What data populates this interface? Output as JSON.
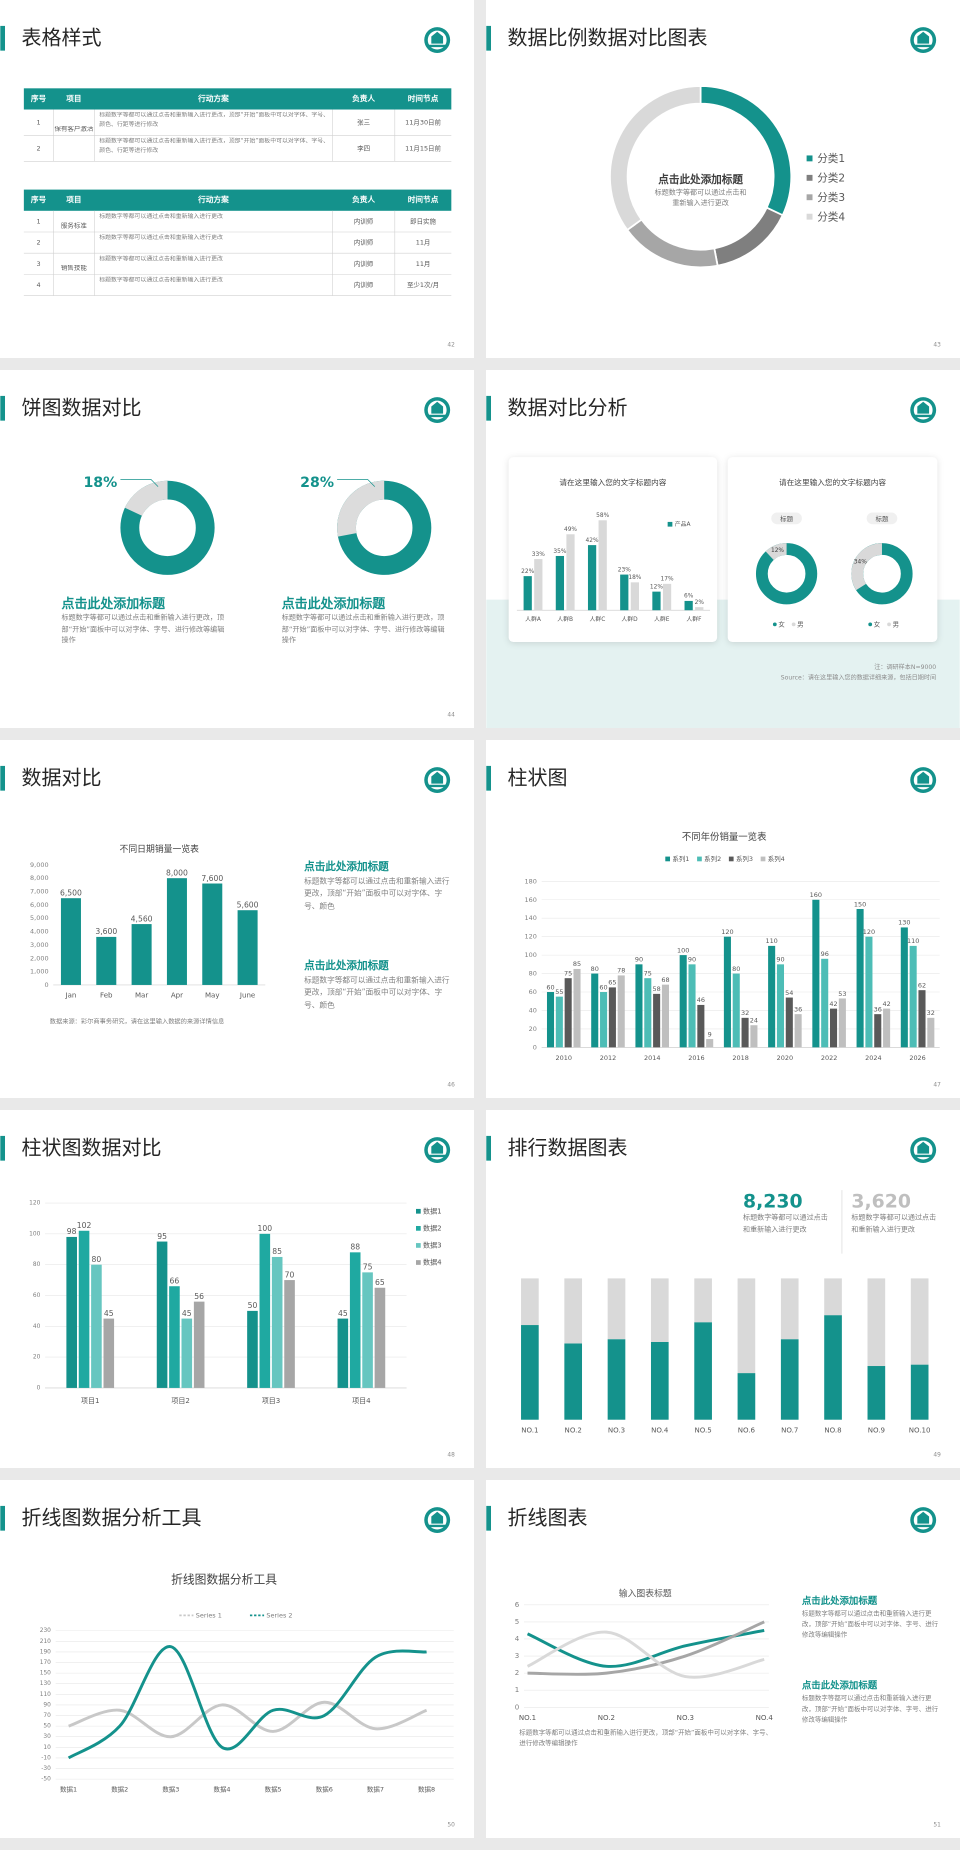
{
  "slides": [
    {
      "title": "表格样式",
      "page": 42,
      "tables": [
        {
          "header": [
            "序号",
            "项目",
            "行动方案",
            "负责人",
            "时间节点"
          ],
          "rows": [
            {
              "no": "1",
              "project": "保有客户激活",
              "plan": "标题数字等都可以通过点击和重新输入进行更改，顶部“开始”面板中可以对字体、字号、颜色、行距等进行修改",
              "owner": "张三",
              "date": "11月30日前"
            },
            {
              "no": "2",
              "plan": "标题数字等都可以通过点击和重新输入进行更改，顶部“开始”面板中可以对字体、字号、颜色、行距等进行修改",
              "owner": "李四",
              "date": "11月15日前"
            }
          ]
        },
        {
          "header": [
            "序号",
            "项目",
            "行动方案",
            "负责人",
            "时间节点"
          ],
          "rows": [
            {
              "no": "1",
              "project": "服务标准",
              "plan": "标题数字等都可以通过点击和重新输入进行更改",
              "owner": "内训师",
              "date": "即日实施"
            },
            {
              "no": "2",
              "plan": "标题数字等都可以通过点击和重新输入进行更改",
              "owner": "内训师",
              "date": "11月"
            },
            {
              "no": "3",
              "project": "销售技能",
              "plan": "标题数字等都可以通过点击和重新输入进行更改",
              "owner": "内训师",
              "date": "11月"
            },
            {
              "no": "4",
              "plan": "标题数字等都可以通过点击和重新输入进行更改",
              "owner": "内训师",
              "date": "至少1次/月"
            }
          ]
        }
      ]
    },
    {
      "title": "数据比例数据对比图表",
      "page": 43,
      "chart": {
        "type": "donut",
        "title": "点击此处添加标题",
        "text": "标题数字等都可以通过点击和重新输入进行更改",
        "categories": [
          "分类1",
          "分类2",
          "分类3",
          "分类4"
        ],
        "values": [
          32,
          15,
          18,
          35
        ],
        "colors": [
          "#14928c",
          "#7f7f7f",
          "#a6a6a6",
          "#d9d9d9"
        ]
      }
    },
    {
      "title": "饼图数据对比",
      "page": 44,
      "charts": [
        {
          "type": "ring",
          "value": 18,
          "value_label": "18%",
          "color": "#dcdcdc",
          "heading": "点击此处添加标题",
          "text": "标题数字等都可以通过点击和重新输入进行更改，顶部“开始”面板中可以对字体、字号、进行修改等编辑操作"
        },
        {
          "type": "ring",
          "value": 28,
          "value_label": "28%",
          "color": "#dcdcdc",
          "heading": "点击此处添加标题",
          "text": "标题数字等都可以通过点击和重新输入进行更改，顶部“开始”面板中可以对字体、字号、进行修改等编辑操作"
        }
      ]
    },
    {
      "title": "数据对比分析",
      "page": 45,
      "cards": [
        {
          "title": "请在这里输入您的文字标题内容",
          "chart": {
            "type": "bar",
            "categories": [
              "人群A",
              "人群B",
              "人群C",
              "人群D",
              "人群E",
              "人群F"
            ],
            "ylim": [
              0,
              60
            ],
            "series": [
              {
                "name": "产品A",
                "color": "#14928c",
                "values": [
                  22,
                  35,
                  42,
                  23,
                  12,
                  6
                ],
                "value_labels": [
                  "22%",
                  "35%",
                  "42%",
                  "23%",
                  "12%",
                  "6%"
                ]
              },
              {
                "color": "#d9d9d9",
                "values": [
                  33,
                  49,
                  58,
                  18,
                  17,
                  2
                ],
                "value_labels": [
                  "33%",
                  "49%",
                  "58%",
                  "18%",
                  "17%",
                  "2%"
                ]
              }
            ]
          }
        },
        {
          "title": "请在这里输入您的文字标题内容",
          "chart": {
            "type": "rings",
            "legend": [
              "女",
              "男"
            ],
            "colors": [
              "#14928c",
              "#d9d9d9"
            ],
            "items": [
              {
                "label": "标题",
                "value": 12,
                "value_label": "12%"
              },
              {
                "label": "标题",
                "value": 34,
                "value_label": "34%"
              }
            ]
          }
        }
      ],
      "notes": [
        "注：调研样本N=9000",
        "Source：请在这里输入您的数据详细来源，包括日期时间"
      ]
    },
    {
      "title": "数据对比",
      "page": 46,
      "chart": {
        "type": "bar",
        "title": "不同日期销量一览表",
        "categories": [
          "Jan",
          "Feb",
          "Mar",
          "Apr",
          "May",
          "June"
        ],
        "values": [
          6500,
          3600,
          4560,
          8000,
          7600,
          5600
        ],
        "value_labels": [
          "6,500",
          "3,600",
          "4,560",
          "8,000",
          "7,600",
          "5,600"
        ],
        "color": "#14928c",
        "ylim": [
          0,
          9000
        ],
        "yticks": [
          0,
          {
            "value": 1000,
            "label": "1,000"
          },
          {
            "value": 2000,
            "label": "2,000"
          },
          {
            "value": 3000,
            "label": "3,000"
          },
          {
            "value": 4000,
            "label": "4,000"
          },
          {
            "value": 5000,
            "label": "5,000"
          },
          {
            "value": 6000,
            "label": "6,000"
          },
          {
            "value": 7000,
            "label": "7,000"
          },
          {
            "value": 8000,
            "label": "8,000"
          },
          {
            "value": 9000,
            "label": "9,000"
          }
        ],
        "source": "数据来源：彩尔商事务研究，请在这里输入数据的来源详情信息"
      },
      "texts": [
        {
          "heading": "点击此处添加标题",
          "text": "标题数字等都可以通过点击和重新输入进行更改，顶部“开始”面板中可以对字体、字号、颜色"
        },
        {
          "heading": "点击此处添加标题",
          "text": "标题数字等都可以通过点击和重新输入进行更改，顶部“开始”面板中可以对字体、字号、颜色"
        }
      ]
    },
    {
      "title": "柱状图",
      "page": 47,
      "chart": {
        "type": "bar",
        "title": "不同年份销量一览表",
        "categories": [
          "2010",
          "2012",
          "2014",
          "2016",
          "2018",
          "2020",
          "2022",
          "2024",
          "2026"
        ],
        "ylim": [
          0,
          180
        ],
        "yticks": [
          0,
          20,
          40,
          60,
          80,
          100,
          120,
          140,
          160,
          180
        ],
        "grid": true,
        "series": [
          {
            "name": "系列1",
            "color": "#14928c",
            "values": [
              60,
              80,
              90,
              100,
              120,
              110,
              160,
              150,
              130
            ]
          },
          {
            "name": "系列2",
            "color": "#4dbdb6",
            "values": [
              55,
              60,
              75,
              90,
              80,
              90,
              96,
              120,
              110
            ]
          },
          {
            "name": "系列3",
            "color": "#595959",
            "values": [
              75,
              65,
              58,
              46,
              32,
              54,
              42,
              36,
              62
            ]
          },
          {
            "name": "系列4",
            "color": "#bfbfbf",
            "values": [
              85,
              78,
              68,
              9,
              24,
              36,
              53,
              42,
              32
            ]
          }
        ]
      }
    },
    {
      "title": "柱状图数据对比",
      "page": 48,
      "chart": {
        "type": "bar",
        "categories": [
          "项目1",
          "项目2",
          "项目3",
          "项目4"
        ],
        "ylim": [
          0,
          120
        ],
        "yticks": [
          0,
          20,
          40,
          60,
          80,
          100,
          120
        ],
        "grid": true,
        "series": [
          {
            "name": "数据1",
            "color": "#14928c",
            "values": [
              98,
              95,
              50,
              45
            ]
          },
          {
            "name": "数据2",
            "color": "#1fa9a1",
            "values": [
              102,
              66,
              100,
              88
            ]
          },
          {
            "name": "数据3",
            "color": "#66c6c0",
            "values": [
              80,
              45,
              85,
              75
            ]
          },
          {
            "name": "数据4",
            "color": "#a6a6a6",
            "values": [
              45,
              56,
              70,
              65
            ]
          }
        ]
      }
    },
    {
      "title": "排行数据图表",
      "page": 49,
      "stats": [
        {
          "value": "8,230",
          "text": "标题数字等都可以通过点击和重新输入进行更改",
          "color": "#14928c"
        },
        {
          "value": "3,620",
          "text": "标题数字等都可以通过点击和重新输入进行更改",
          "color": "#bfbfbf"
        }
      ],
      "chart": {
        "type": "stacked_bar",
        "categories": [
          "NO.1",
          "NO.2",
          "NO.3",
          "NO.4",
          "NO.5",
          "NO.6",
          "NO.7",
          "NO.8",
          "NO.9",
          "NO.10"
        ],
        "ylim": [
          0,
          100
        ],
        "series": [
          {
            "color": "#14928c",
            "values": [
              67,
              54,
              57,
              55,
              69,
              33,
              57,
              74,
              38,
              39
            ]
          },
          {
            "color": "#d9d9d9",
            "values": [
              33,
              46,
              43,
              45,
              31,
              67,
              43,
              26,
              62,
              61
            ]
          }
        ]
      }
    },
    {
      "title": "折线图数据分析工具",
      "page": 50,
      "chart": {
        "type": "line",
        "title": "折线图数据分析工具",
        "smooth": true,
        "grid": true,
        "categories": [
          "数据1",
          "数据2",
          "数据3",
          "数据4",
          "数据5",
          "数据6",
          "数据7",
          "数据8"
        ],
        "ylim": [
          -50,
          230
        ],
        "yticks": [
          -50,
          -30,
          -10,
          10,
          30,
          50,
          70,
          90,
          110,
          130,
          150,
          170,
          190,
          210,
          230
        ],
        "series": [
          {
            "name": "Series 1",
            "color": "#c8c8c8",
            "values": [
              50,
              80,
              30,
              90,
              40,
              95,
              45,
              80
            ]
          },
          {
            "name": "Series 2",
            "color": "#14928c",
            "values": [
              -10,
              50,
              200,
              10,
              80,
              70,
              180,
              190
            ]
          }
        ]
      }
    },
    {
      "title": "折线图表",
      "page": 51,
      "chart": {
        "type": "line",
        "title": "输入图表标题",
        "smooth": true,
        "grid": true,
        "categories": [
          "NO.1",
          "NO.2",
          "NO.3",
          "NO.4"
        ],
        "ylim": [
          0,
          6
        ],
        "yticks": [
          0,
          1,
          2,
          3,
          4,
          5,
          6
        ],
        "series": [
          {
            "color": "#14928c",
            "values": [
              4.3,
              2.4,
              3.6,
              4.5
            ]
          },
          {
            "color": "#a6a6a6",
            "values": [
              2,
              2,
              3,
              5
            ]
          },
          {
            "color": "#d9d9d9",
            "values": [
              2.4,
              4.4,
              1.8,
              2.8
            ]
          }
        ],
        "caption": "标题数字等都可以通过点击和重新输入进行更改，顶部“开始”面板中可以对字体、字号、进行修改等编辑操作"
      },
      "texts": [
        {
          "heading": "点击此处添加标题",
          "text": "标题数字等都可以通过点击和重新输入进行更改，顶部“开始”面板中可以对字体、字号、进行修改等编辑操作"
        },
        {
          "heading": "点击此处添加标题",
          "text": "标题数字等都可以通过点击和重新输入进行更改，顶部“开始”面板中可以对字体、字号、进行修改等编辑操作"
        }
      ]
    }
  ]
}
